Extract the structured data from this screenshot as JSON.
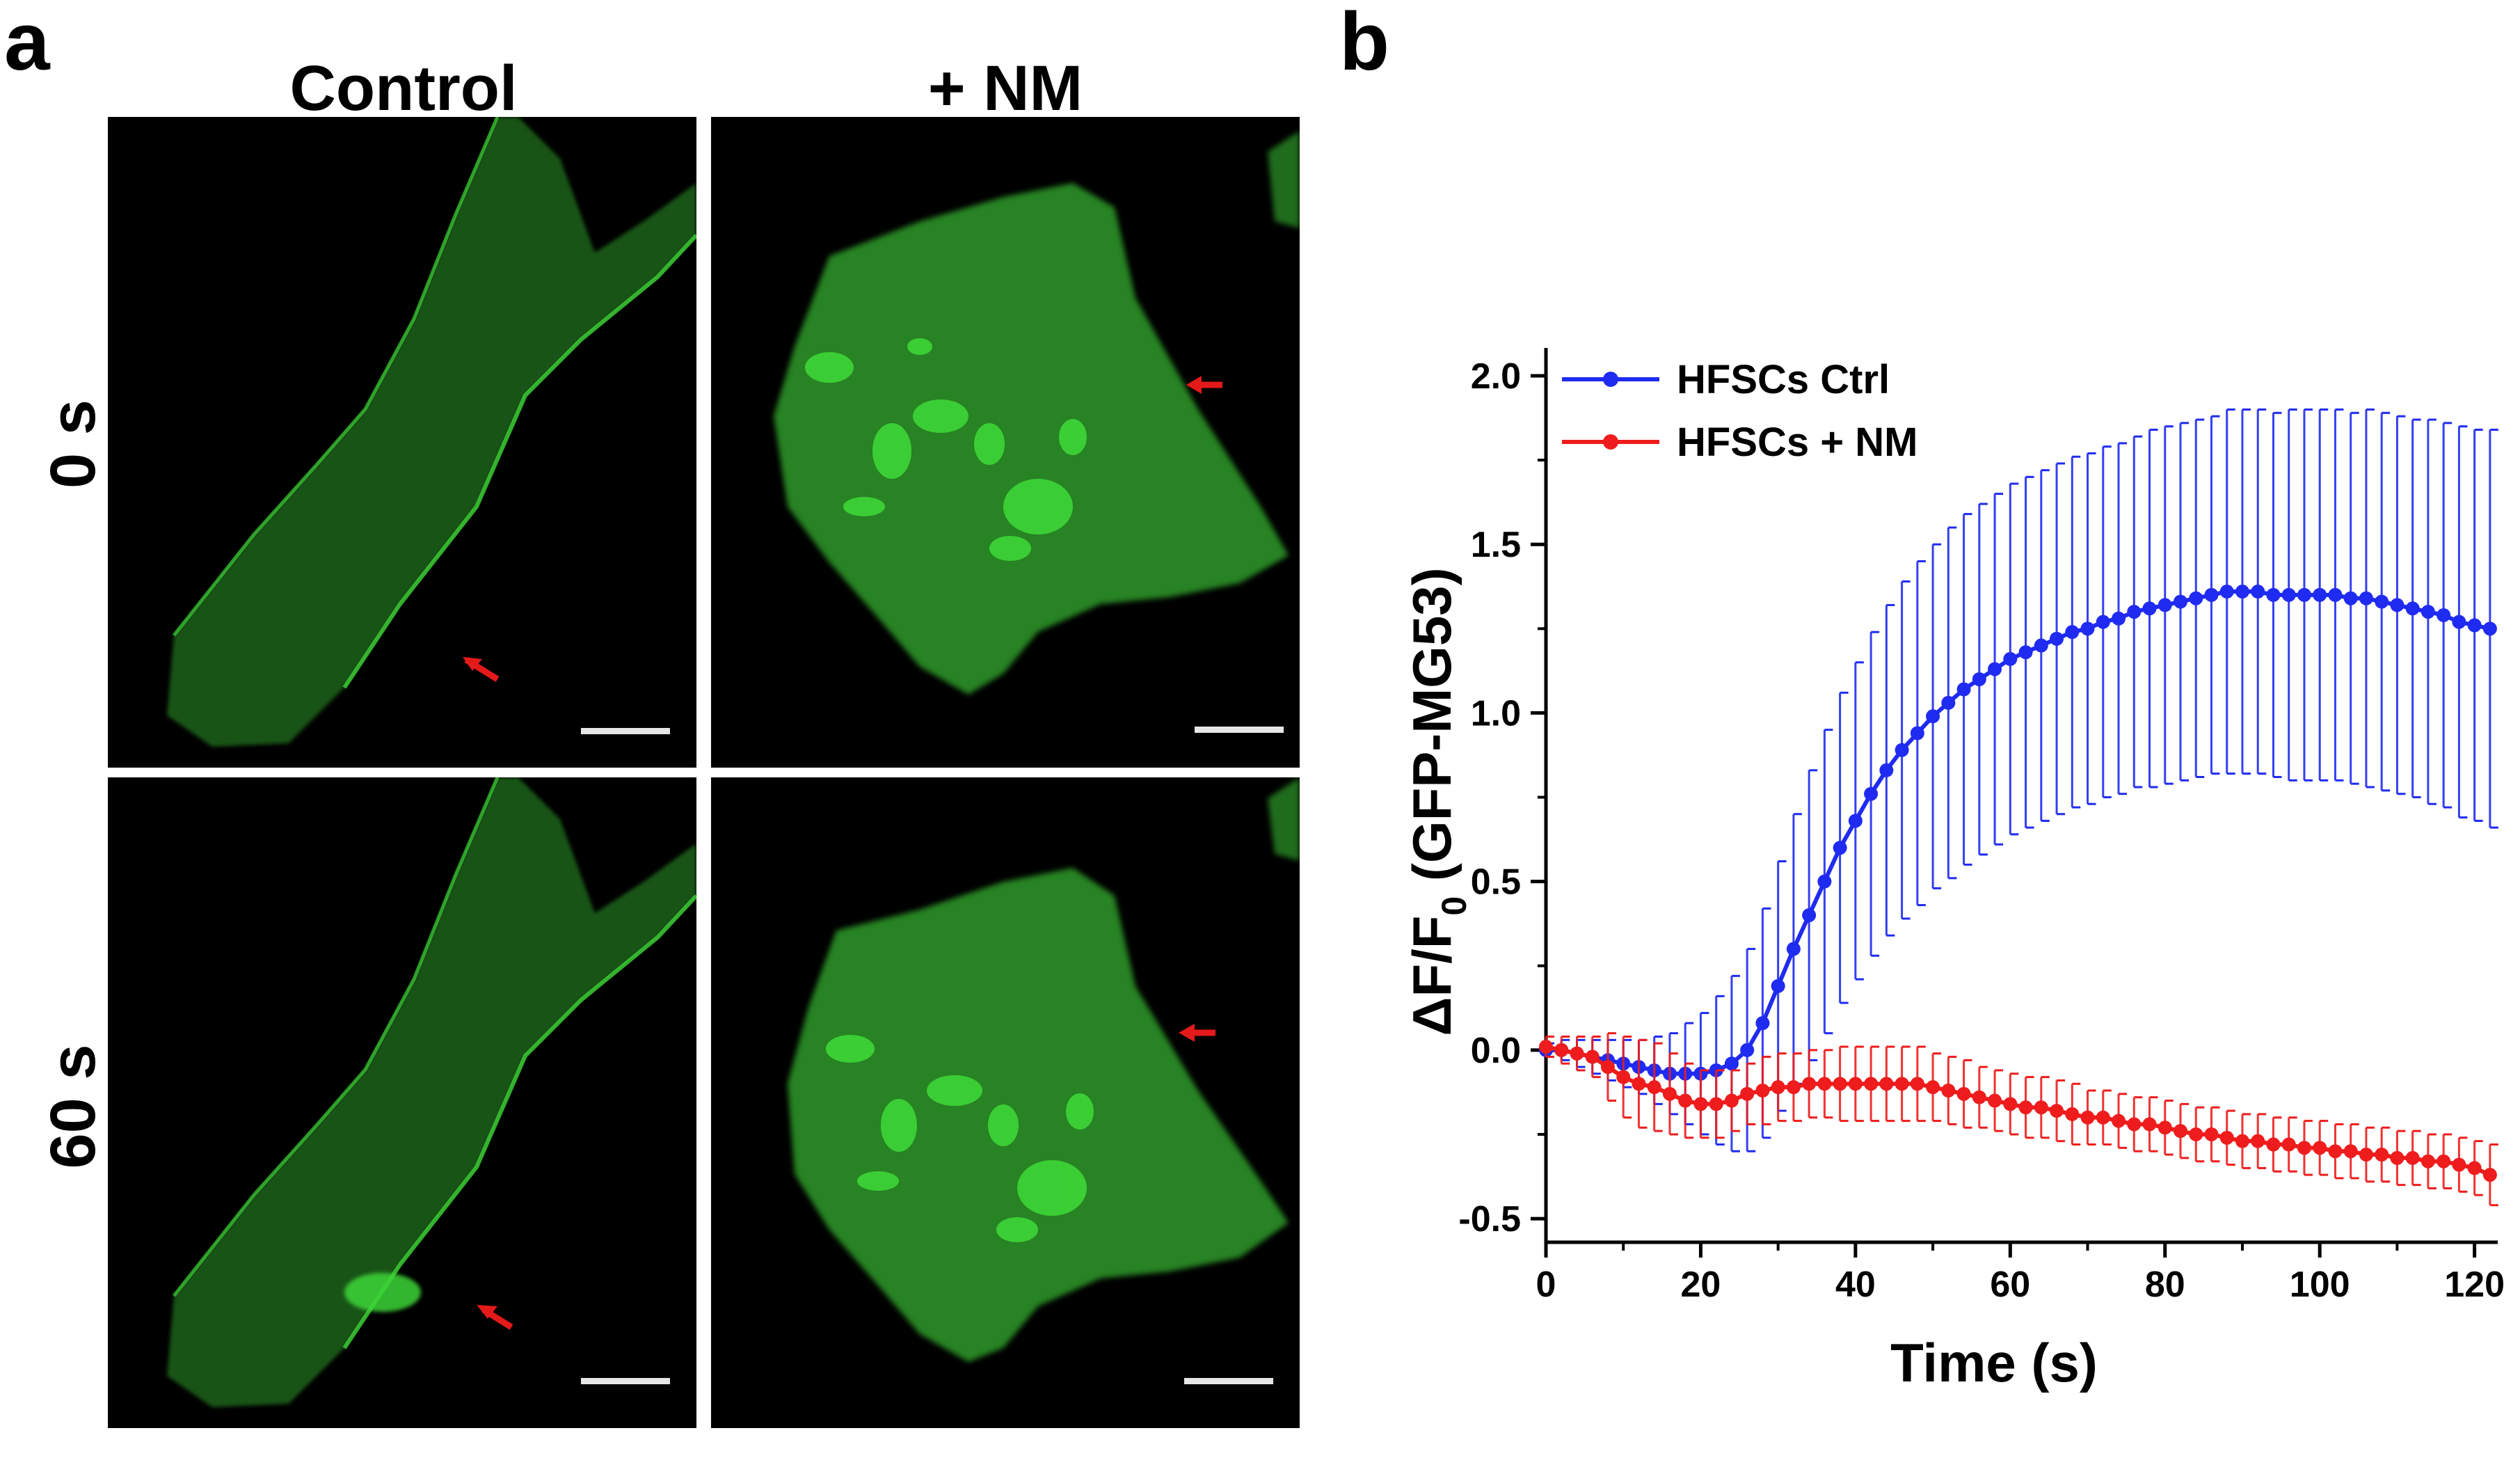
{
  "panel_a": {
    "label": "a",
    "columns": [
      "Control",
      "+ NM"
    ],
    "rows": [
      "0 s",
      "60 s"
    ]
  },
  "panel_b": {
    "label": "b"
  },
  "colors": {
    "ctrl": "#1f2bf0",
    "nm": "#ee1c1c",
    "cell": "#2f9a2a",
    "cell_bright": "#3ed637",
    "arrow": "#e41a1a"
  },
  "chart_data": {
    "type": "line",
    "xlabel": "Time (s)",
    "ylabel": "ΔF/F0 (GFP-MG53)",
    "ylabel_main": "ΔF/F",
    "ylabel_sub": "0",
    "ylabel_rest": " (GFP-MG53)",
    "xlim": [
      0,
      123
    ],
    "ylim": [
      -0.5,
      2.0
    ],
    "xticks": [
      0,
      20,
      40,
      60,
      80,
      100,
      120
    ],
    "yticks": [
      -0.5,
      0.0,
      0.5,
      1.0,
      1.5,
      2.0
    ],
    "ytick_labels": [
      "-0.5",
      "0.0",
      "0.5",
      "1.0",
      "1.5",
      "2.0"
    ],
    "legend_position": "top-left",
    "series": [
      {
        "name": "HFSCs Ctrl",
        "x": [
          0,
          2,
          4,
          6,
          8,
          10,
          12,
          14,
          16,
          18,
          20,
          22,
          24,
          26,
          28,
          30,
          32,
          34,
          36,
          38,
          40,
          42,
          44,
          46,
          48,
          50,
          52,
          54,
          56,
          58,
          60,
          62,
          64,
          66,
          68,
          70,
          72,
          74,
          76,
          78,
          80,
          82,
          84,
          86,
          88,
          90,
          92,
          94,
          96,
          98,
          100,
          102,
          104,
          106,
          108,
          110,
          112,
          114,
          116,
          118,
          120,
          122
        ],
        "y": [
          0.0,
          0.0,
          -0.01,
          -0.02,
          -0.03,
          -0.04,
          -0.05,
          -0.06,
          -0.07,
          -0.07,
          -0.07,
          -0.06,
          -0.04,
          0.0,
          0.08,
          0.19,
          0.3,
          0.4,
          0.5,
          0.6,
          0.68,
          0.76,
          0.83,
          0.89,
          0.94,
          0.99,
          1.03,
          1.07,
          1.1,
          1.13,
          1.16,
          1.18,
          1.2,
          1.22,
          1.24,
          1.25,
          1.27,
          1.28,
          1.3,
          1.31,
          1.32,
          1.33,
          1.34,
          1.35,
          1.36,
          1.36,
          1.36,
          1.35,
          1.35,
          1.35,
          1.35,
          1.35,
          1.34,
          1.34,
          1.33,
          1.32,
          1.31,
          1.3,
          1.29,
          1.27,
          1.26,
          1.25
        ],
        "err": [
          0.02,
          0.03,
          0.04,
          0.05,
          0.06,
          0.07,
          0.08,
          0.1,
          0.12,
          0.15,
          0.18,
          0.22,
          0.26,
          0.3,
          0.34,
          0.37,
          0.4,
          0.43,
          0.45,
          0.46,
          0.47,
          0.48,
          0.49,
          0.5,
          0.51,
          0.51,
          0.52,
          0.52,
          0.52,
          0.52,
          0.52,
          0.52,
          0.52,
          0.52,
          0.52,
          0.52,
          0.52,
          0.52,
          0.52,
          0.53,
          0.53,
          0.53,
          0.53,
          0.53,
          0.54,
          0.54,
          0.54,
          0.54,
          0.55,
          0.55,
          0.55,
          0.55,
          0.55,
          0.56,
          0.56,
          0.56,
          0.56,
          0.57,
          0.57,
          0.58,
          0.58,
          0.59
        ]
      },
      {
        "name": "HFSCs + NM",
        "x": [
          0,
          2,
          4,
          6,
          8,
          10,
          12,
          14,
          16,
          18,
          20,
          22,
          24,
          26,
          28,
          30,
          32,
          34,
          36,
          38,
          40,
          42,
          44,
          46,
          48,
          50,
          52,
          54,
          56,
          58,
          60,
          62,
          64,
          66,
          68,
          70,
          72,
          74,
          76,
          78,
          80,
          82,
          84,
          86,
          88,
          90,
          92,
          94,
          96,
          98,
          100,
          102,
          104,
          106,
          108,
          110,
          112,
          114,
          116,
          118,
          120,
          122
        ],
        "y": [
          0.01,
          0.0,
          -0.01,
          -0.02,
          -0.05,
          -0.08,
          -0.1,
          -0.11,
          -0.13,
          -0.15,
          -0.16,
          -0.16,
          -0.15,
          -0.13,
          -0.12,
          -0.11,
          -0.11,
          -0.1,
          -0.1,
          -0.1,
          -0.1,
          -0.1,
          -0.1,
          -0.1,
          -0.1,
          -0.11,
          -0.12,
          -0.13,
          -0.14,
          -0.15,
          -0.16,
          -0.17,
          -0.17,
          -0.18,
          -0.19,
          -0.2,
          -0.2,
          -0.21,
          -0.22,
          -0.22,
          -0.23,
          -0.24,
          -0.25,
          -0.25,
          -0.26,
          -0.27,
          -0.27,
          -0.28,
          -0.28,
          -0.29,
          -0.29,
          -0.3,
          -0.3,
          -0.31,
          -0.31,
          -0.32,
          -0.32,
          -0.33,
          -0.33,
          -0.34,
          -0.35,
          -0.37
        ],
        "err": [
          0.03,
          0.04,
          0.05,
          0.06,
          0.1,
          0.12,
          0.13,
          0.13,
          0.12,
          0.11,
          0.1,
          0.1,
          0.09,
          0.09,
          0.1,
          0.1,
          0.1,
          0.1,
          0.1,
          0.11,
          0.11,
          0.11,
          0.11,
          0.11,
          0.11,
          0.1,
          0.1,
          0.1,
          0.09,
          0.09,
          0.09,
          0.09,
          0.09,
          0.09,
          0.09,
          0.08,
          0.08,
          0.08,
          0.08,
          0.08,
          0.08,
          0.08,
          0.08,
          0.08,
          0.08,
          0.08,
          0.08,
          0.08,
          0.08,
          0.08,
          0.08,
          0.08,
          0.08,
          0.08,
          0.08,
          0.08,
          0.08,
          0.08,
          0.08,
          0.08,
          0.08,
          0.09
        ]
      }
    ]
  }
}
